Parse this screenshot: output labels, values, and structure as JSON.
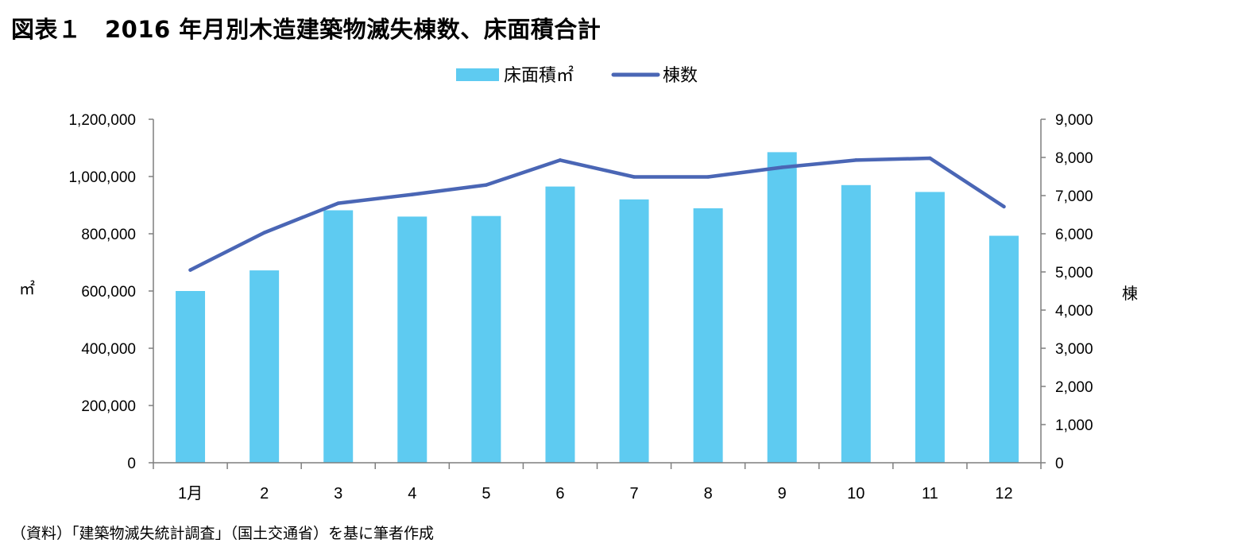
{
  "figure": {
    "title": "図表１　2016 年月別木造建築物滅失棟数、床面積合計",
    "source": "（資料）「建築物滅失統計調査」（国土交通省）を基に筆者作成"
  },
  "chart_data": {
    "type": "bar",
    "categories": [
      "1月",
      "2",
      "3",
      "4",
      "5",
      "6",
      "7",
      "8",
      "9",
      "10",
      "11",
      "12"
    ],
    "series": [
      {
        "name": "床面積㎡",
        "type": "bar",
        "axis": "left",
        "color": "#5ecbf1",
        "values": [
          600000,
          672000,
          882000,
          860000,
          862000,
          965000,
          920000,
          889000,
          1085000,
          970000,
          946000,
          793000
        ]
      },
      {
        "name": "棟数",
        "type": "line",
        "axis": "right",
        "color": "#4a66b5",
        "values": [
          5050,
          6030,
          6800,
          7030,
          7280,
          7930,
          7490,
          7490,
          7740,
          7930,
          7980,
          6710
        ]
      }
    ],
    "y_left": {
      "label": "㎡",
      "ylim": [
        0,
        1200000
      ],
      "ticks": [
        0,
        200000,
        400000,
        600000,
        800000,
        1000000,
        1200000
      ],
      "tick_labels": [
        "0",
        "200,000",
        "400,000",
        "600,000",
        "800,000",
        "1,000,000",
        "1,200,000"
      ]
    },
    "y_right": {
      "label": "棟",
      "ylim": [
        0,
        9000
      ],
      "ticks": [
        0,
        1000,
        2000,
        3000,
        4000,
        5000,
        6000,
        7000,
        8000,
        9000
      ],
      "tick_labels": [
        "0",
        "1,000",
        "2,000",
        "3,000",
        "4,000",
        "5,000",
        "6,000",
        "7,000",
        "8,000",
        "9,000"
      ]
    },
    "legend_position": "top-center",
    "grid": false
  }
}
